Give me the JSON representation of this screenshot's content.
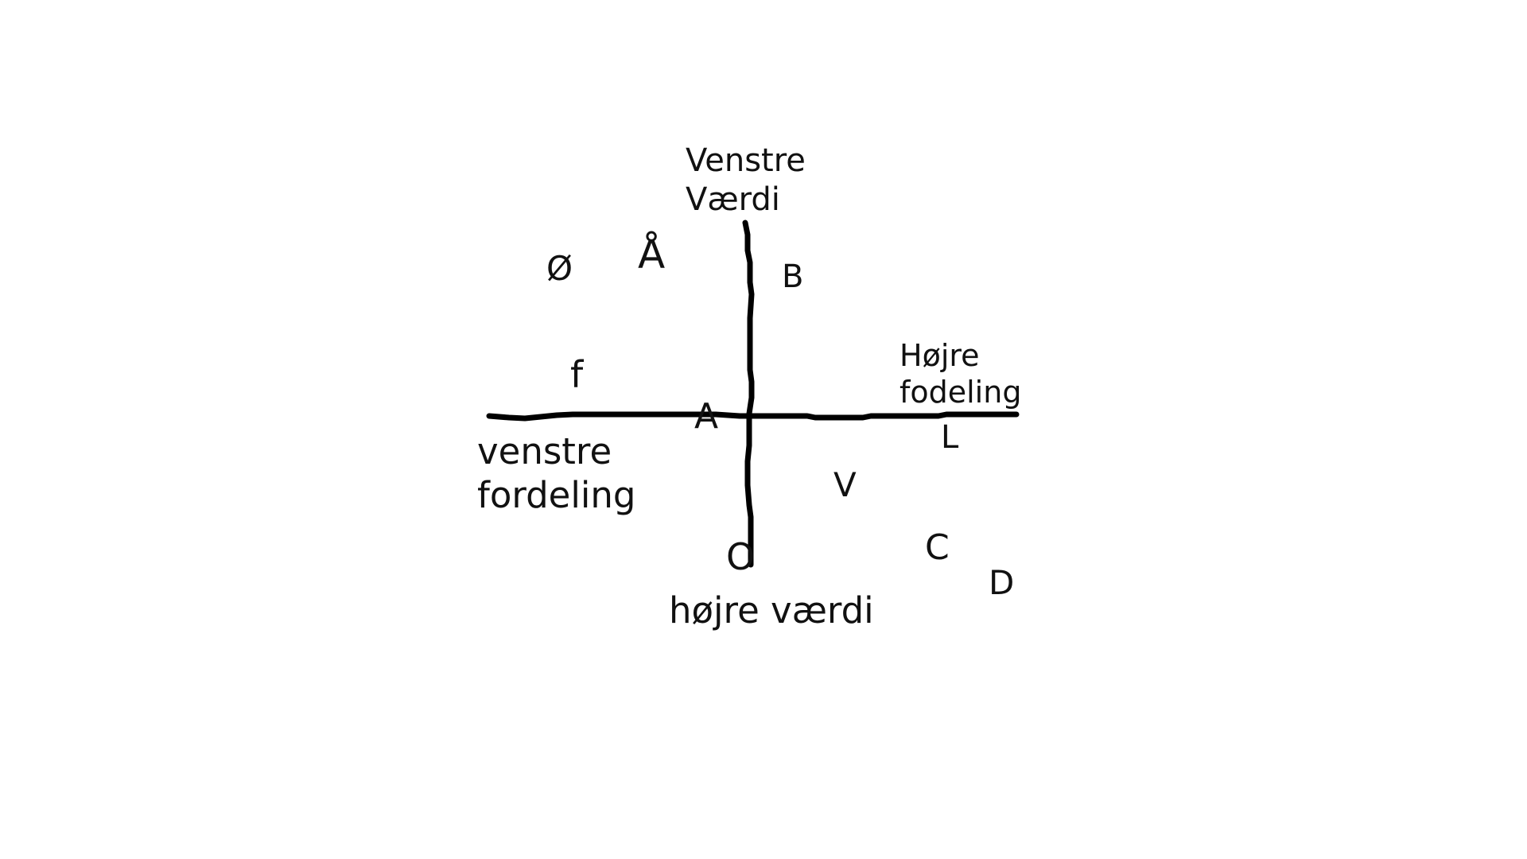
{
  "diagram": {
    "axis_labels": {
      "top": {
        "line1": "Venstre",
        "line2": "Værdi"
      },
      "bottom": "højre værdi",
      "left": {
        "line1": "venstre",
        "line2": "fordeling"
      },
      "right": {
        "line1": "Højre",
        "line2": "fodeling"
      }
    },
    "points": {
      "oe": "Ø",
      "aa": "Å",
      "b": "B",
      "f": "f",
      "a": "A",
      "l": "L",
      "v": "V",
      "o": "O",
      "c": "C",
      "d": "D"
    }
  },
  "colors": {
    "background": "#ffffff",
    "ink": "#000000"
  }
}
